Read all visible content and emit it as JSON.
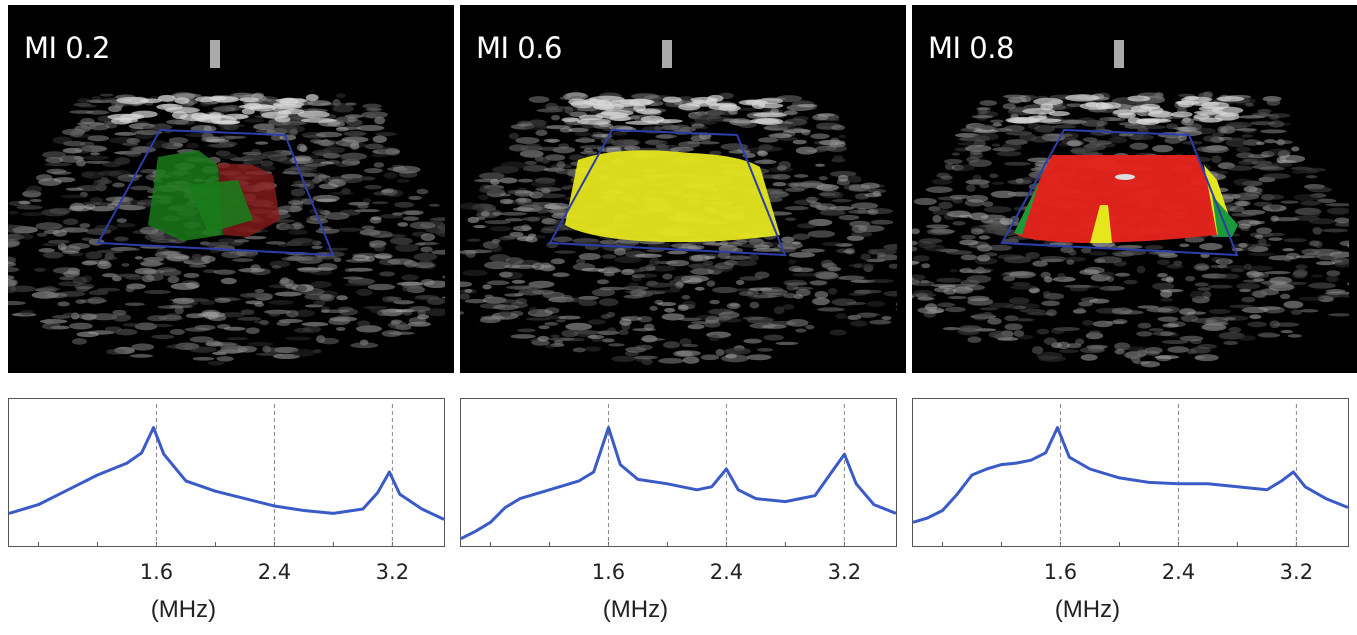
{
  "panels": [
    {
      "label": "MI 0.2",
      "overlay": {
        "type": "patchy",
        "colors": [
          "#1a7a1a",
          "#8a1a1a"
        ]
      },
      "spectrum": {
        "x_ticks": [
          "1.6",
          "2.4",
          "3.2"
        ],
        "unit": "(MHz)",
        "points": [
          [
            0.6,
            0.22
          ],
          [
            0.8,
            0.28
          ],
          [
            1.0,
            0.38
          ],
          [
            1.2,
            0.48
          ],
          [
            1.4,
            0.56
          ],
          [
            1.5,
            0.63
          ],
          [
            1.58,
            0.8
          ],
          [
            1.65,
            0.62
          ],
          [
            1.8,
            0.44
          ],
          [
            2.0,
            0.37
          ],
          [
            2.2,
            0.32
          ],
          [
            2.4,
            0.27
          ],
          [
            2.6,
            0.24
          ],
          [
            2.8,
            0.22
          ],
          [
            3.0,
            0.25
          ],
          [
            3.1,
            0.36
          ],
          [
            3.18,
            0.5
          ],
          [
            3.25,
            0.35
          ],
          [
            3.4,
            0.25
          ],
          [
            3.55,
            0.18
          ]
        ]
      }
    },
    {
      "label": "MI 0.6",
      "overlay": {
        "type": "solid",
        "colors": [
          "#e6e61e"
        ]
      },
      "spectrum": {
        "x_ticks": [
          "1.6",
          "2.4",
          "3.2"
        ],
        "unit": "(MHz)",
        "points": [
          [
            0.6,
            0.05
          ],
          [
            0.7,
            0.1
          ],
          [
            0.8,
            0.16
          ],
          [
            0.9,
            0.26
          ],
          [
            1.0,
            0.32
          ],
          [
            1.2,
            0.38
          ],
          [
            1.4,
            0.44
          ],
          [
            1.5,
            0.5
          ],
          [
            1.6,
            0.8
          ],
          [
            1.68,
            0.55
          ],
          [
            1.8,
            0.45
          ],
          [
            2.0,
            0.42
          ],
          [
            2.2,
            0.38
          ],
          [
            2.3,
            0.4
          ],
          [
            2.4,
            0.52
          ],
          [
            2.48,
            0.38
          ],
          [
            2.6,
            0.32
          ],
          [
            2.8,
            0.3
          ],
          [
            2.9,
            0.32
          ],
          [
            3.0,
            0.34
          ],
          [
            3.1,
            0.48
          ],
          [
            3.2,
            0.62
          ],
          [
            3.28,
            0.42
          ],
          [
            3.4,
            0.28
          ],
          [
            3.55,
            0.22
          ]
        ]
      }
    },
    {
      "label": "MI 0.8",
      "overlay": {
        "type": "mixed",
        "colors": [
          "#e3231b",
          "#e6e61e",
          "#1a9a3a"
        ]
      },
      "spectrum": {
        "x_ticks": [
          "1.6",
          "2.4",
          "3.2"
        ],
        "unit": "(MHz)",
        "points": [
          [
            0.6,
            0.16
          ],
          [
            0.7,
            0.19
          ],
          [
            0.8,
            0.24
          ],
          [
            0.9,
            0.35
          ],
          [
            1.0,
            0.48
          ],
          [
            1.1,
            0.52
          ],
          [
            1.2,
            0.55
          ],
          [
            1.3,
            0.56
          ],
          [
            1.4,
            0.58
          ],
          [
            1.5,
            0.63
          ],
          [
            1.58,
            0.8
          ],
          [
            1.66,
            0.6
          ],
          [
            1.8,
            0.52
          ],
          [
            2.0,
            0.46
          ],
          [
            2.2,
            0.43
          ],
          [
            2.4,
            0.42
          ],
          [
            2.6,
            0.42
          ],
          [
            2.8,
            0.4
          ],
          [
            3.0,
            0.38
          ],
          [
            3.1,
            0.44
          ],
          [
            3.18,
            0.5
          ],
          [
            3.26,
            0.4
          ],
          [
            3.4,
            0.32
          ],
          [
            3.55,
            0.26
          ]
        ]
      }
    }
  ],
  "colors": {
    "line": "#3a5bc7",
    "frame": "#2d3ea8",
    "grid": "#888888"
  }
}
